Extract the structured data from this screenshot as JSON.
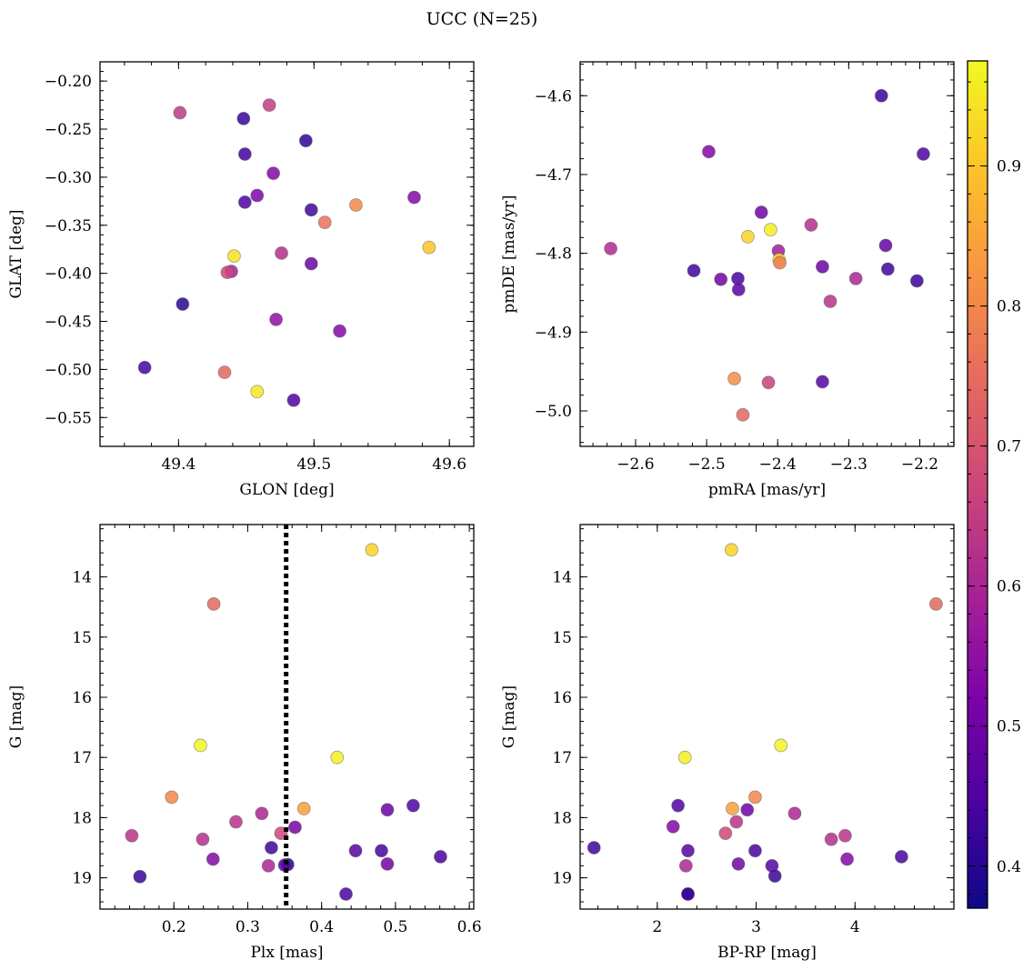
{
  "title": "UCC (N=25)",
  "colors": {
    "colormap": "plasma",
    "marker_alpha": 0.85,
    "vline": "#000000"
  },
  "colorbar": {
    "range": [
      0.37,
      0.975
    ],
    "ticks": [
      0.4,
      0.5,
      0.6,
      0.7,
      0.8,
      0.9
    ],
    "tick_labels": [
      "0.4",
      "0.5",
      "0.6",
      "0.7",
      "0.8",
      "0.9"
    ]
  },
  "chart_data": [
    {
      "type": "scatter",
      "id": "glon-glat",
      "xlabel": "GLON [deg]",
      "ylabel": "GLAT [deg]",
      "xlim": [
        49.342,
        49.618
      ],
      "ylim": [
        -0.58,
        -0.18
      ],
      "xticks": [
        49.4,
        49.5,
        49.6
      ],
      "xtick_labels": [
        "49.4",
        "49.5",
        "49.6"
      ],
      "yticks": [
        -0.2,
        -0.25,
        -0.3,
        -0.35,
        -0.4,
        -0.45,
        -0.5,
        -0.55
      ],
      "ytick_labels": [
        "−0.20",
        "−0.25",
        "−0.30",
        "−0.35",
        "−0.40",
        "−0.45",
        "−0.50",
        "−0.55"
      ],
      "x": [
        49.401,
        49.448,
        49.467,
        49.494,
        49.449,
        49.47,
        49.458,
        49.449,
        49.574,
        49.531,
        49.498,
        49.508,
        49.441,
        49.585,
        49.476,
        49.439,
        49.436,
        49.498,
        49.403,
        49.472,
        49.519,
        49.375,
        49.434,
        49.458,
        49.485
      ],
      "y": [
        -0.233,
        -0.239,
        -0.225,
        -0.262,
        -0.276,
        -0.296,
        -0.319,
        -0.326,
        -0.321,
        -0.329,
        -0.334,
        -0.347,
        -0.382,
        -0.373,
        -0.379,
        -0.398,
        -0.399,
        -0.39,
        -0.432,
        -0.448,
        -0.46,
        -0.498,
        -0.503,
        -0.523,
        -0.532
      ],
      "c": [
        0.64,
        0.42,
        0.65,
        0.41,
        0.43,
        0.53,
        0.52,
        0.45,
        0.53,
        0.8,
        0.43,
        0.76,
        0.94,
        0.9,
        0.62,
        0.59,
        0.67,
        0.49,
        0.4,
        0.55,
        0.53,
        0.44,
        0.74,
        0.95,
        0.45
      ]
    },
    {
      "type": "scatter",
      "id": "pmra-pmde",
      "xlabel": "pmRA [mas/yr]",
      "ylabel": "pmDE [mas/yr]",
      "xlim": [
        -2.678,
        -2.152
      ],
      "ylim": [
        -5.045,
        -4.557
      ],
      "xticks": [
        -2.6,
        -2.5,
        -2.4,
        -2.3,
        -2.2
      ],
      "xtick_labels": [
        "−2.6",
        "−2.5",
        "−2.4",
        "−2.3",
        "−2.2"
      ],
      "yticks": [
        -4.6,
        -4.7,
        -4.8,
        -4.9,
        -5.0
      ],
      "ytick_labels": [
        "−4.6",
        "−4.7",
        "−4.8",
        "−4.9",
        "−5.0"
      ],
      "x": [
        -2.254,
        -2.497,
        -2.195,
        -2.423,
        -2.41,
        -2.442,
        -2.353,
        -2.399,
        -2.248,
        -2.635,
        -2.398,
        -2.397,
        -2.518,
        -2.337,
        -2.245,
        -2.456,
        -2.48,
        -2.29,
        -2.204,
        -2.455,
        -2.326,
        -2.461,
        -2.413,
        -2.337,
        -2.449
      ],
      "y": [
        -4.6,
        -4.671,
        -4.674,
        -4.748,
        -4.77,
        -4.779,
        -4.764,
        -4.797,
        -4.79,
        -4.794,
        -4.808,
        -4.812,
        -4.822,
        -4.817,
        -4.82,
        -4.832,
        -4.833,
        -4.832,
        -4.835,
        -4.846,
        -4.861,
        -4.959,
        -4.964,
        -4.963,
        -5.005
      ],
      "c": [
        0.42,
        0.53,
        0.45,
        0.5,
        0.96,
        0.92,
        0.62,
        0.58,
        0.48,
        0.61,
        0.94,
        0.78,
        0.43,
        0.49,
        0.43,
        0.44,
        0.5,
        0.6,
        0.42,
        0.47,
        0.63,
        0.81,
        0.66,
        0.46,
        0.74
      ]
    },
    {
      "type": "scatter",
      "id": "plx-g",
      "xlabel": "Plx [mas]",
      "ylabel": "G [mag]",
      "xlim": [
        0.1,
        0.606
      ],
      "ylim": [
        19.52,
        13.13
      ],
      "y_inverted": true,
      "xticks": [
        0.2,
        0.3,
        0.4,
        0.5,
        0.6
      ],
      "xtick_labels": [
        "0.2",
        "0.3",
        "0.4",
        "0.5",
        "0.6"
      ],
      "yticks": [
        14,
        15,
        16,
        17,
        18,
        19
      ],
      "ytick_labels": [
        "14",
        "15",
        "16",
        "17",
        "18",
        "19"
      ],
      "vline": 0.352,
      "x": [
        0.468,
        0.254,
        0.236,
        0.421,
        0.197,
        0.376,
        0.524,
        0.489,
        0.319,
        0.284,
        0.239,
        0.364,
        0.345,
        0.143,
        0.332,
        0.446,
        0.481,
        0.561,
        0.253,
        0.489,
        0.354,
        0.35,
        0.328,
        0.154,
        0.433
      ],
      "y": [
        13.55,
        14.45,
        16.8,
        17.0,
        17.66,
        17.85,
        17.8,
        17.87,
        17.93,
        18.07,
        18.36,
        18.16,
        18.26,
        18.3,
        18.5,
        18.55,
        18.55,
        18.65,
        18.69,
        18.77,
        18.78,
        18.79,
        18.8,
        18.98,
        19.27
      ],
      "c": [
        0.92,
        0.74,
        0.97,
        0.96,
        0.8,
        0.84,
        0.45,
        0.49,
        0.6,
        0.63,
        0.62,
        0.51,
        0.67,
        0.63,
        0.43,
        0.46,
        0.44,
        0.44,
        0.53,
        0.5,
        0.38,
        0.46,
        0.6,
        0.42,
        0.44
      ]
    },
    {
      "type": "scatter",
      "id": "bprp-g",
      "xlabel": "BP-RP [mag]",
      "ylabel": "G [mag]",
      "xlim": [
        1.22,
        5.0
      ],
      "ylim": [
        19.52,
        13.13
      ],
      "y_inverted": true,
      "xticks": [
        2,
        3,
        4
      ],
      "xtick_labels": [
        "2",
        "3",
        "4"
      ],
      "yticks": [
        14,
        15,
        16,
        17,
        18,
        19
      ],
      "ytick_labels": [
        "14",
        "15",
        "16",
        "17",
        "18",
        "19"
      ],
      "x": [
        2.75,
        4.82,
        3.25,
        2.28,
        2.99,
        2.76,
        2.21,
        2.91,
        3.39,
        2.8,
        2.16,
        2.69,
        3.9,
        3.76,
        1.36,
        2.31,
        2.99,
        4.47,
        2.29,
        3.92,
        2.82,
        3.16,
        3.19,
        2.31,
        2.31
      ],
      "y": [
        13.55,
        14.45,
        16.8,
        17.0,
        17.66,
        17.85,
        17.8,
        17.87,
        17.93,
        18.07,
        18.15,
        18.26,
        18.3,
        18.36,
        18.5,
        18.55,
        18.55,
        18.65,
        18.8,
        18.69,
        18.77,
        18.8,
        18.97,
        19.27,
        19.27
      ],
      "c": [
        0.92,
        0.74,
        0.97,
        0.96,
        0.8,
        0.84,
        0.45,
        0.49,
        0.6,
        0.63,
        0.53,
        0.67,
        0.63,
        0.62,
        0.43,
        0.46,
        0.44,
        0.44,
        0.6,
        0.53,
        0.5,
        0.46,
        0.42,
        0.44,
        0.42
      ]
    }
  ]
}
